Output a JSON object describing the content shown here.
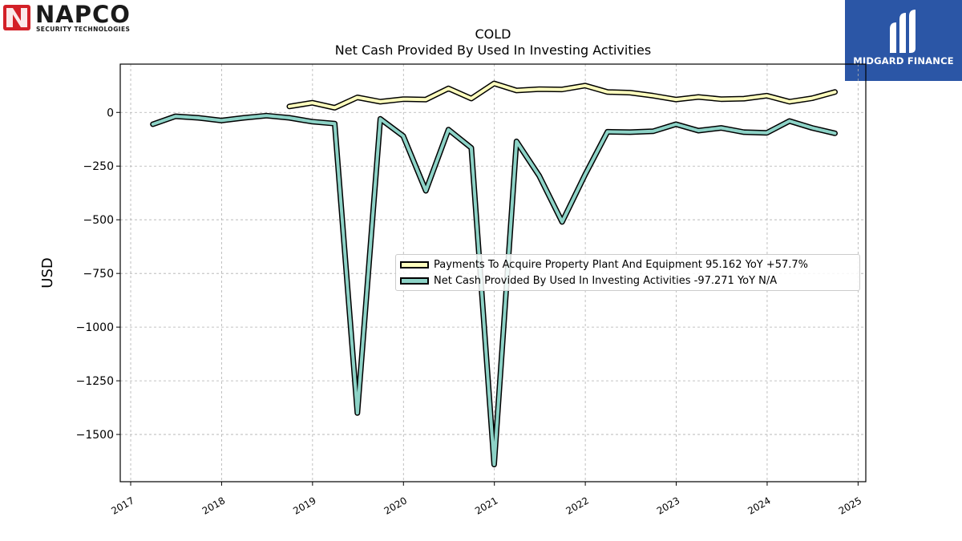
{
  "branding": {
    "left_logo": {
      "name": "NAPCO",
      "tagline": "SECURITY TECHNOLOGIES",
      "icon": "napco-logo-icon",
      "color": "#d32027"
    },
    "right_logo": {
      "name": "MIDGARD FINANCE",
      "icon": "midgard-logo-icon",
      "background": "#2b56a6"
    }
  },
  "chart_data": {
    "type": "line",
    "title": "COLD",
    "subtitle": "Net Cash Provided By Used In Investing Activities",
    "ylabel": "USD",
    "xlabel": "",
    "xlim": [
      "2016-11-20",
      "2025-02-01"
    ],
    "ylim": [
      -1720,
      225
    ],
    "x_ticks": [
      "2017",
      "2018",
      "2019",
      "2020",
      "2021",
      "2022",
      "2023",
      "2024",
      "2025"
    ],
    "y_ticks": [
      0,
      -250,
      -500,
      -750,
      -1000,
      -1250,
      -1500
    ],
    "y_tick_labels": [
      "0",
      "−250",
      "−500",
      "−750",
      "−1000",
      "−1250",
      "−1500"
    ],
    "grid": true,
    "legend_position": "center-right",
    "series": [
      {
        "name": "Payments To Acquire Property Plant And Equipment",
        "legend_label": "Payments To Acquire Property Plant And Equipment  95.162 YoY +57.7%",
        "color": "#ffffbe",
        "x": [
          "2018-09-30",
          "2018-12-31",
          "2019-03-31",
          "2019-06-30",
          "2019-09-30",
          "2019-12-31",
          "2020-03-31",
          "2020-06-30",
          "2020-09-30",
          "2020-12-31",
          "2021-03-31",
          "2021-06-30",
          "2021-09-30",
          "2021-12-31",
          "2022-03-31",
          "2022-06-30",
          "2022-09-30",
          "2022-12-31",
          "2023-03-31",
          "2023-06-30",
          "2023-09-30",
          "2023-12-31",
          "2024-03-31",
          "2024-06-30",
          "2024-09-30"
        ],
        "values": [
          28,
          45,
          22,
          70,
          50,
          62,
          60,
          112,
          65,
          135,
          102,
          108,
          107,
          125,
          95,
          92,
          78,
          60,
          72,
          62,
          64,
          78,
          50,
          66,
          95
        ]
      },
      {
        "name": "Net Cash Provided By Used In Investing Activities",
        "legend_label": "Net Cash Provided By Used In Investing Activities  -97.271 YoY N/A",
        "color": "#8dd3c7",
        "x": [
          "2017-03-31",
          "2017-06-30",
          "2017-09-30",
          "2017-12-31",
          "2018-03-31",
          "2018-06-30",
          "2018-09-30",
          "2018-12-31",
          "2019-03-31",
          "2019-06-30",
          "2019-09-30",
          "2019-12-31",
          "2020-03-31",
          "2020-06-30",
          "2020-09-30",
          "2020-12-31",
          "2021-03-31",
          "2021-06-30",
          "2021-09-30",
          "2021-12-31",
          "2022-03-31",
          "2022-06-30",
          "2022-09-30",
          "2022-12-31",
          "2023-03-31",
          "2023-06-30",
          "2023-09-30",
          "2023-12-31",
          "2024-03-31",
          "2024-06-30",
          "2024-09-30"
        ],
        "values": [
          -55,
          -18,
          -25,
          -38,
          -25,
          -15,
          -25,
          -43,
          -52,
          -1400,
          -30,
          -110,
          -365,
          -80,
          -165,
          -1640,
          -135,
          -295,
          -510,
          -290,
          -90,
          -92,
          -88,
          -55,
          -85,
          -72,
          -92,
          -95,
          -40,
          -72,
          -97
        ]
      }
    ]
  }
}
